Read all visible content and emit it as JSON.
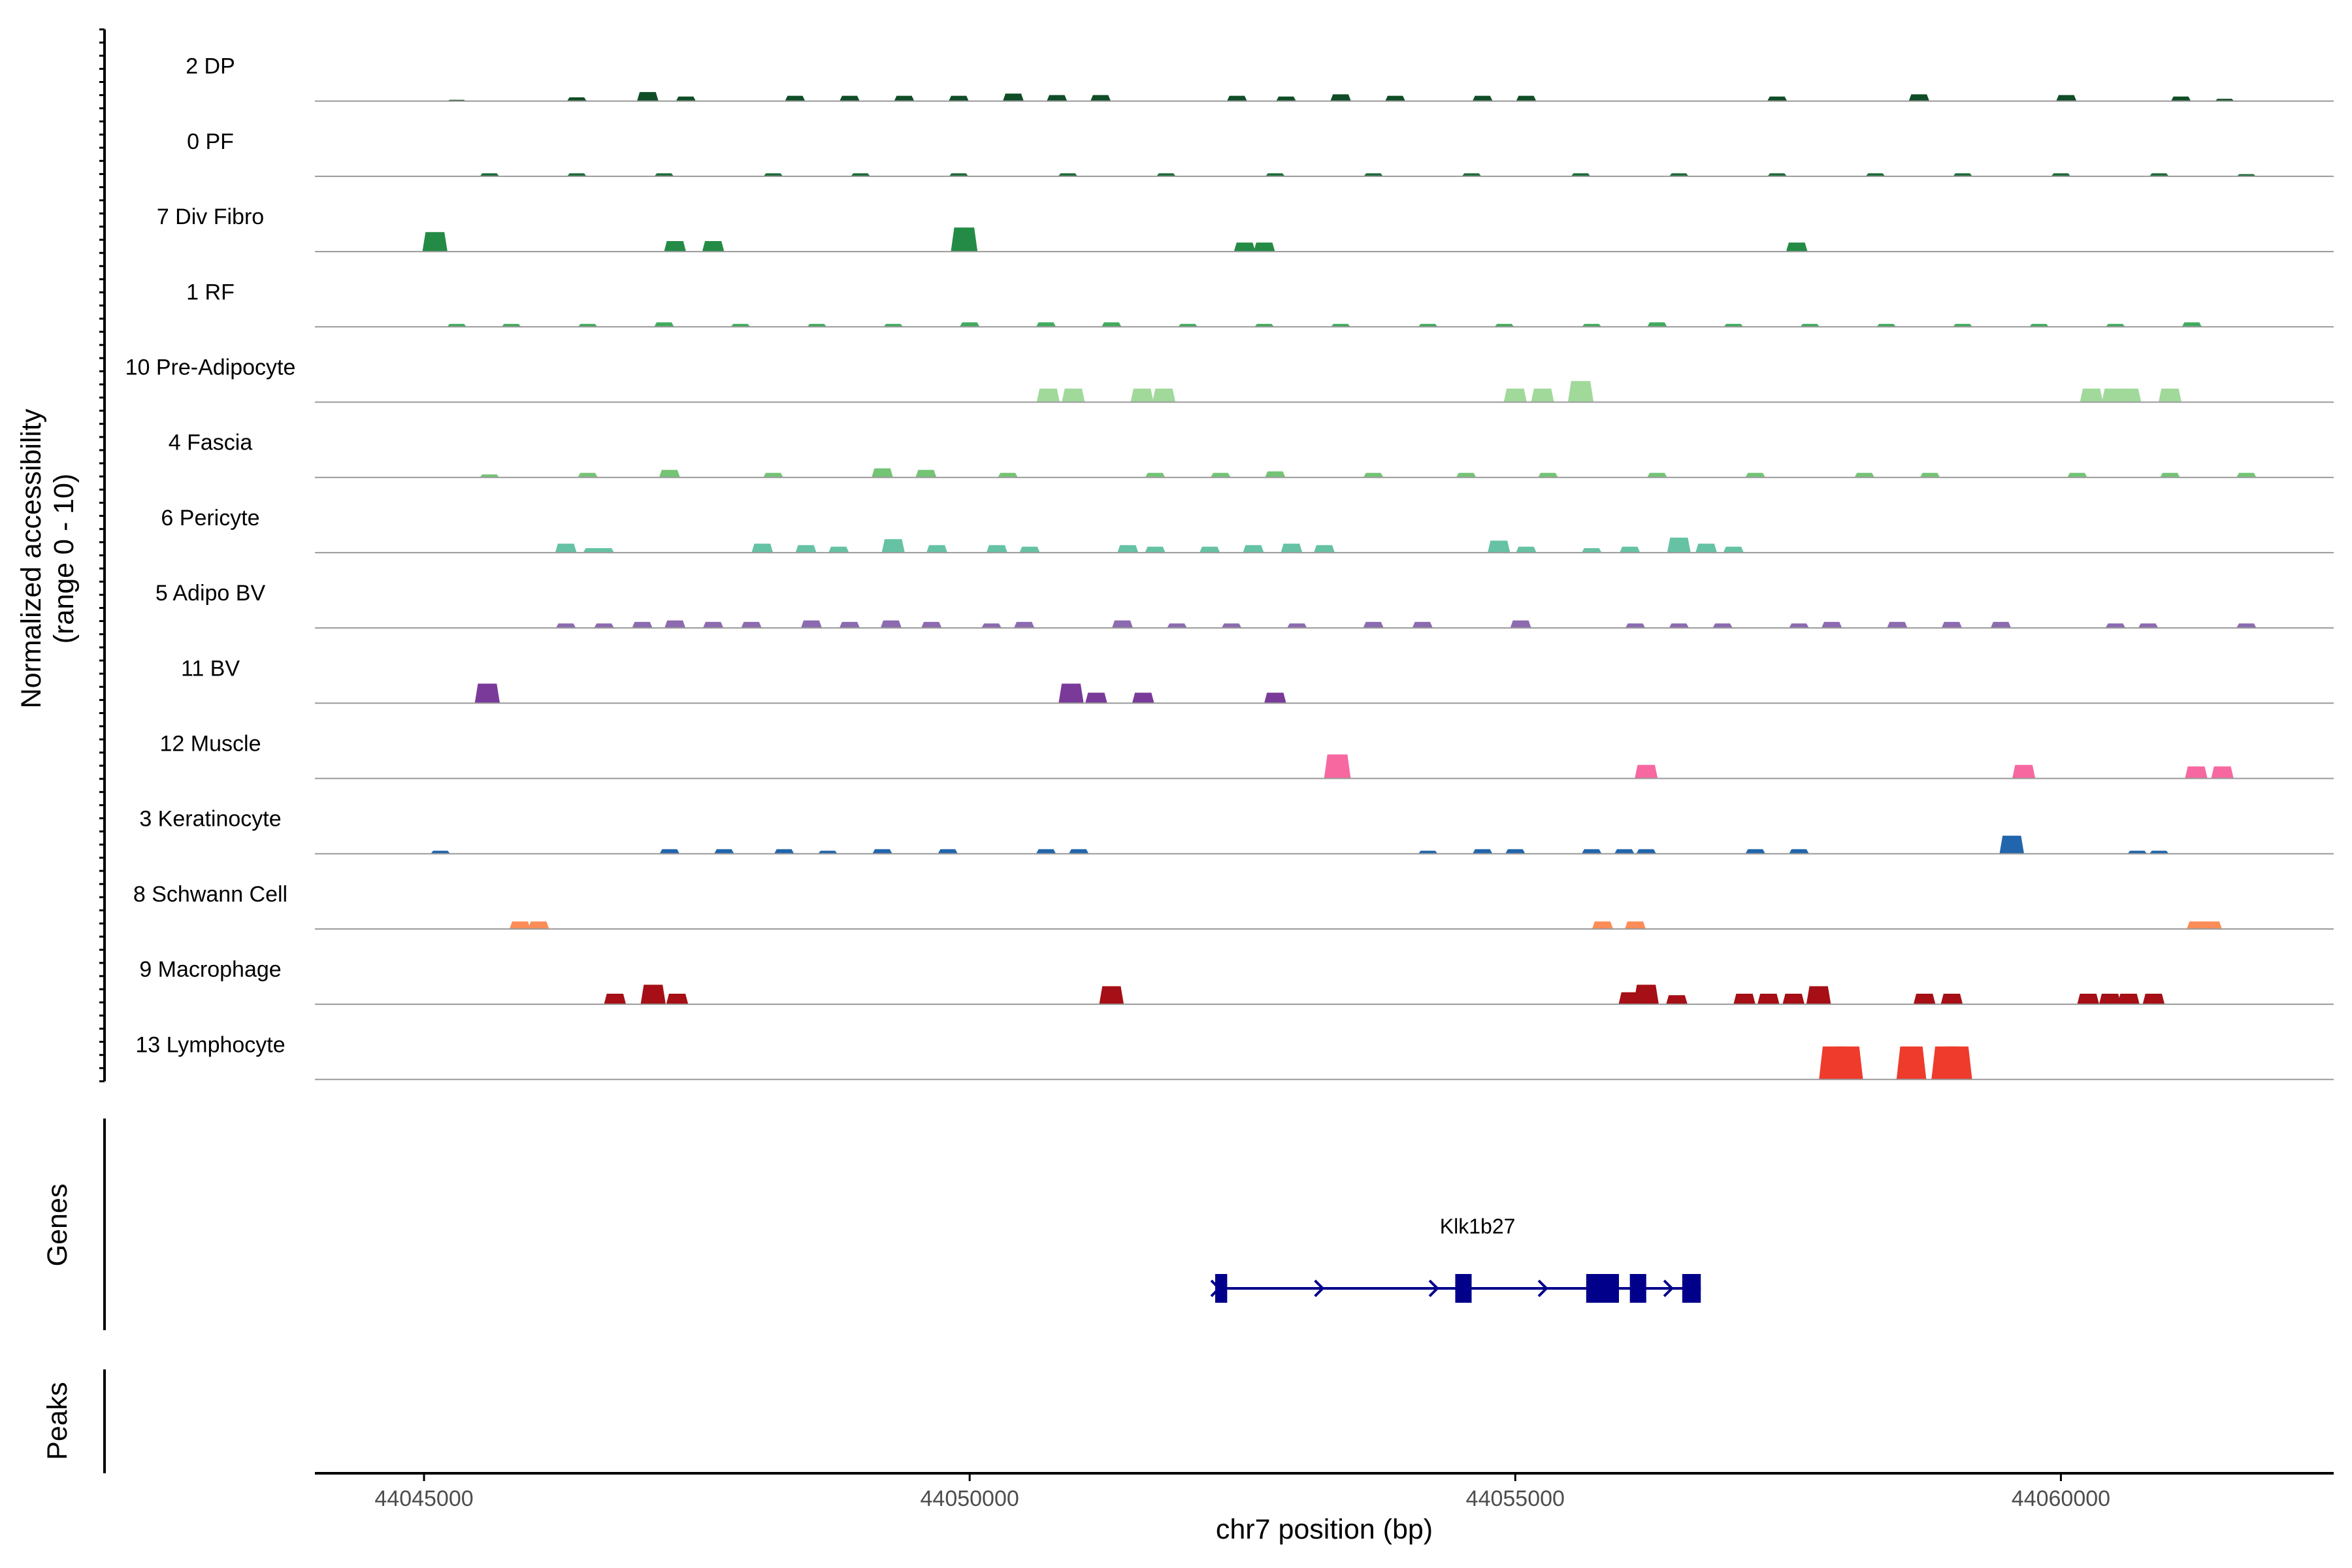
{
  "chart_data": {
    "type": "area",
    "title": "",
    "xlabel": "chr7 position (bp)",
    "ylabel_line1": "Normalized accessibility",
    "ylabel_line2": "(range 0 - 10)",
    "xlim": [
      44044000,
      44062500
    ],
    "x_ticks": [
      44045000,
      44050000,
      44055000,
      44060000
    ],
    "x_tick_labels": [
      "44045000",
      "44050000",
      "44055000",
      "44060000"
    ],
    "panel_labels": {
      "genes": "Genes",
      "peaks": "Peaks"
    },
    "tracks": [
      {
        "name": "2 DP",
        "color": "#0f4d26",
        "peaks": [
          [
            44045300,
            0.05
          ],
          [
            44046400,
            0.25
          ],
          [
            44047050,
            0.6
          ],
          [
            44047400,
            0.3
          ],
          [
            44048400,
            0.35
          ],
          [
            44048900,
            0.35
          ],
          [
            44049400,
            0.35
          ],
          [
            44049900,
            0.35
          ],
          [
            44050400,
            0.5
          ],
          [
            44050800,
            0.4
          ],
          [
            44051200,
            0.4
          ],
          [
            44052450,
            0.35
          ],
          [
            44052900,
            0.3
          ],
          [
            44053400,
            0.45
          ],
          [
            44053900,
            0.35
          ],
          [
            44054700,
            0.35
          ],
          [
            44055100,
            0.35
          ],
          [
            44057400,
            0.3
          ],
          [
            44058700,
            0.45
          ],
          [
            44060050,
            0.4
          ],
          [
            44061100,
            0.3
          ],
          [
            44061500,
            0.15
          ]
        ]
      },
      {
        "name": "0 PF",
        "color": "#1d6b38",
        "peaks": [
          [
            44045600,
            0.2
          ],
          [
            44046400,
            0.2
          ],
          [
            44047200,
            0.2
          ],
          [
            44048200,
            0.2
          ],
          [
            44049000,
            0.2
          ],
          [
            44049900,
            0.2
          ],
          [
            44050900,
            0.2
          ],
          [
            44051800,
            0.2
          ],
          [
            44052800,
            0.2
          ],
          [
            44053700,
            0.2
          ],
          [
            44054600,
            0.2
          ],
          [
            44055600,
            0.2
          ],
          [
            44056500,
            0.2
          ],
          [
            44057400,
            0.2
          ],
          [
            44058300,
            0.2
          ],
          [
            44059100,
            0.2
          ],
          [
            44060000,
            0.2
          ],
          [
            44060900,
            0.2
          ],
          [
            44061700,
            0.15
          ]
        ]
      },
      {
        "name": "7 Div Fibro",
        "color": "#238b45",
        "peaks": [
          [
            44045100,
            1.3
          ],
          [
            44047300,
            0.7
          ],
          [
            44047650,
            0.7
          ],
          [
            44049950,
            1.6
          ],
          [
            44052520,
            0.6
          ],
          [
            44052700,
            0.6
          ],
          [
            44057580,
            0.6
          ]
        ]
      },
      {
        "name": "1 RF",
        "color": "#41ab5d",
        "peaks": [
          [
            44045300,
            0.2
          ],
          [
            44045800,
            0.2
          ],
          [
            44046500,
            0.2
          ],
          [
            44047200,
            0.3
          ],
          [
            44047900,
            0.2
          ],
          [
            44048600,
            0.2
          ],
          [
            44049300,
            0.2
          ],
          [
            44050000,
            0.3
          ],
          [
            44050700,
            0.3
          ],
          [
            44051300,
            0.3
          ],
          [
            44052000,
            0.2
          ],
          [
            44052700,
            0.2
          ],
          [
            44053400,
            0.2
          ],
          [
            44054200,
            0.2
          ],
          [
            44054900,
            0.2
          ],
          [
            44055700,
            0.2
          ],
          [
            44056300,
            0.3
          ],
          [
            44057000,
            0.2
          ],
          [
            44057700,
            0.2
          ],
          [
            44058400,
            0.2
          ],
          [
            44059100,
            0.2
          ],
          [
            44059800,
            0.2
          ],
          [
            44060500,
            0.2
          ],
          [
            44061200,
            0.3
          ]
        ]
      },
      {
        "name": "10 Pre-Adipocyte",
        "color": "#a1d99b",
        "peaks": [
          [
            44050720,
            0.9
          ],
          [
            44050950,
            0.9
          ],
          [
            44051580,
            0.9
          ],
          [
            44051780,
            0.9
          ],
          [
            44055000,
            0.9
          ],
          [
            44055250,
            0.9
          ],
          [
            44055600,
            1.4
          ],
          [
            44060280,
            0.9
          ],
          [
            44060480,
            0.9
          ],
          [
            44060630,
            0.9
          ],
          [
            44061000,
            0.9
          ]
        ]
      },
      {
        "name": "4 Fascia",
        "color": "#74c476",
        "peaks": [
          [
            44045600,
            0.2
          ],
          [
            44046500,
            0.3
          ],
          [
            44047250,
            0.5
          ],
          [
            44048200,
            0.3
          ],
          [
            44049200,
            0.6
          ],
          [
            44049600,
            0.5
          ],
          [
            44050350,
            0.3
          ],
          [
            44051700,
            0.3
          ],
          [
            44052300,
            0.3
          ],
          [
            44052800,
            0.4
          ],
          [
            44053700,
            0.3
          ],
          [
            44054550,
            0.3
          ],
          [
            44055300,
            0.3
          ],
          [
            44056300,
            0.3
          ],
          [
            44057200,
            0.3
          ],
          [
            44058200,
            0.3
          ],
          [
            44058800,
            0.3
          ],
          [
            44060150,
            0.3
          ],
          [
            44061000,
            0.3
          ],
          [
            44061700,
            0.3
          ]
        ]
      },
      {
        "name": "6 Pericyte",
        "color": "#66c2a4",
        "peaks": [
          [
            44046300,
            0.6
          ],
          [
            44046550,
            0.3
          ],
          [
            44046650,
            0.3
          ],
          [
            44048100,
            0.6
          ],
          [
            44048500,
            0.5
          ],
          [
            44048800,
            0.4
          ],
          [
            44049300,
            0.9
          ],
          [
            44049700,
            0.5
          ],
          [
            44050250,
            0.5
          ],
          [
            44050550,
            0.4
          ],
          [
            44051450,
            0.5
          ],
          [
            44051700,
            0.4
          ],
          [
            44052200,
            0.4
          ],
          [
            44052600,
            0.5
          ],
          [
            44052950,
            0.6
          ],
          [
            44053250,
            0.5
          ],
          [
            44054850,
            0.8
          ],
          [
            44055100,
            0.4
          ],
          [
            44055700,
            0.3
          ],
          [
            44056050,
            0.4
          ],
          [
            44056500,
            1.0
          ],
          [
            44056750,
            0.6
          ],
          [
            44057000,
            0.4
          ]
        ]
      },
      {
        "name": "5 Adipo BV",
        "color": "#8c6bb1",
        "peaks": [
          [
            44046300,
            0.3
          ],
          [
            44046650,
            0.3
          ],
          [
            44047000,
            0.4
          ],
          [
            44047300,
            0.5
          ],
          [
            44047650,
            0.4
          ],
          [
            44048000,
            0.4
          ],
          [
            44048550,
            0.5
          ],
          [
            44048900,
            0.4
          ],
          [
            44049280,
            0.5
          ],
          [
            44049650,
            0.4
          ],
          [
            44050200,
            0.3
          ],
          [
            44050500,
            0.4
          ],
          [
            44051400,
            0.5
          ],
          [
            44051900,
            0.3
          ],
          [
            44052400,
            0.3
          ],
          [
            44053000,
            0.3
          ],
          [
            44053700,
            0.4
          ],
          [
            44054150,
            0.4
          ],
          [
            44055050,
            0.5
          ],
          [
            44056100,
            0.3
          ],
          [
            44056500,
            0.3
          ],
          [
            44056900,
            0.3
          ],
          [
            44057600,
            0.3
          ],
          [
            44057900,
            0.4
          ],
          [
            44058500,
            0.4
          ],
          [
            44059000,
            0.4
          ],
          [
            44059450,
            0.4
          ],
          [
            44060500,
            0.3
          ],
          [
            44060800,
            0.3
          ],
          [
            44061700,
            0.3
          ]
        ]
      },
      {
        "name": "11 BV",
        "color": "#7a3a9a",
        "peaks": [
          [
            44045580,
            1.3
          ],
          [
            44050930,
            1.3
          ],
          [
            44051160,
            0.7
          ],
          [
            44051590,
            0.7
          ],
          [
            44052800,
            0.7
          ]
        ]
      },
      {
        "name": "12 Muscle",
        "color": "#f768a1",
        "peaks": [
          [
            44053370,
            1.6
          ],
          [
            44056200,
            0.9
          ],
          [
            44059660,
            0.9
          ],
          [
            44061240,
            0.8
          ],
          [
            44061480,
            0.8
          ]
        ]
      },
      {
        "name": "3 Keratinocyte",
        "color": "#2166ac",
        "peaks": [
          [
            44045150,
            0.2
          ],
          [
            44047250,
            0.3
          ],
          [
            44047750,
            0.3
          ],
          [
            44048300,
            0.3
          ],
          [
            44048700,
            0.2
          ],
          [
            44049200,
            0.3
          ],
          [
            44049800,
            0.3
          ],
          [
            44050700,
            0.3
          ],
          [
            44051000,
            0.3
          ],
          [
            44054200,
            0.2
          ],
          [
            44054700,
            0.3
          ],
          [
            44055000,
            0.3
          ],
          [
            44055700,
            0.3
          ],
          [
            44056000,
            0.3
          ],
          [
            44056200,
            0.3
          ],
          [
            44057200,
            0.3
          ],
          [
            44057600,
            0.3
          ],
          [
            44059550,
            1.2
          ],
          [
            44060700,
            0.2
          ],
          [
            44060900,
            0.2
          ]
        ]
      },
      {
        "name": "8 Schwann Cell",
        "color": "#fc8d59",
        "peaks": [
          [
            44045880,
            0.5
          ],
          [
            44046050,
            0.5
          ],
          [
            44055800,
            0.5
          ],
          [
            44056100,
            0.5
          ],
          [
            44061250,
            0.5
          ],
          [
            44061380,
            0.5
          ]
        ]
      },
      {
        "name": "9 Macrophage",
        "color": "#a50f15",
        "peaks": [
          [
            44046750,
            0.7
          ],
          [
            44047100,
            1.3
          ],
          [
            44047320,
            0.7
          ],
          [
            44051300,
            1.2
          ],
          [
            44056050,
            0.8
          ],
          [
            44056200,
            1.3
          ],
          [
            44056480,
            0.6
          ],
          [
            44057100,
            0.7
          ],
          [
            44057320,
            0.7
          ],
          [
            44057550,
            0.7
          ],
          [
            44057780,
            1.2
          ],
          [
            44058750,
            0.7
          ],
          [
            44059000,
            0.7
          ],
          [
            44060250,
            0.7
          ],
          [
            44060450,
            0.7
          ],
          [
            44060620,
            0.7
          ],
          [
            44060850,
            0.7
          ]
        ]
      },
      {
        "name": "13 Lymphocyte",
        "color": "#ef3b2c",
        "peaks": [
          [
            44057920,
            2.2
          ],
          [
            44058050,
            2.2
          ],
          [
            44058630,
            2.2
          ],
          [
            44058950,
            2.2
          ],
          [
            44059050,
            2.2
          ]
        ]
      }
    ],
    "gene": {
      "name": "Klk1b27",
      "start": 44052250,
      "end": 44056700,
      "exons": [
        [
          44052250,
          44052360
        ],
        [
          44054450,
          44054600
        ],
        [
          44055650,
          44055950
        ],
        [
          44056050,
          44056200
        ],
        [
          44056530,
          44056700
        ]
      ],
      "strand": "+",
      "color": "#00008b"
    }
  }
}
